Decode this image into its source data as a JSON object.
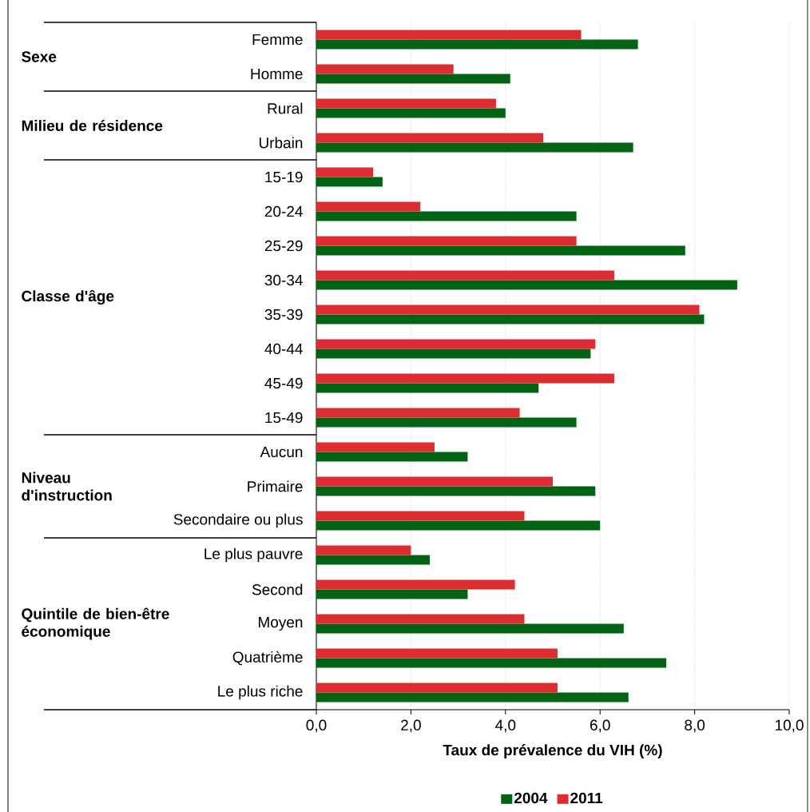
{
  "chart_data": {
    "type": "bar",
    "orientation": "horizontal",
    "xlabel": "Taux de prévalence du VIH (%)",
    "categories": [
      "Femme",
      "Homme",
      "Rural",
      "Urbain",
      "15-19",
      "20-24",
      "25-29",
      "30-34",
      "35-39",
      "40-44",
      "45-49",
      "15-49",
      "Aucun",
      "Primaire",
      "Secondaire ou plus",
      "Le plus pauvre",
      "Second",
      "Moyen",
      "Quatrième",
      "Le plus riche"
    ],
    "series": [
      {
        "name": "2004",
        "color": "#036314",
        "values": [
          6.8,
          4.1,
          4.0,
          6.7,
          1.4,
          5.5,
          7.8,
          8.9,
          8.2,
          5.8,
          4.7,
          5.5,
          3.2,
          5.9,
          6.0,
          2.4,
          3.2,
          6.5,
          7.4,
          6.6
        ]
      },
      {
        "name": "2011",
        "color": "#dc2d32",
        "values": [
          5.6,
          2.9,
          3.8,
          4.8,
          1.2,
          2.2,
          5.5,
          6.3,
          8.1,
          5.9,
          6.3,
          4.3,
          2.5,
          5.0,
          4.4,
          2.0,
          4.2,
          4.4,
          5.1,
          5.1
        ]
      }
    ],
    "xlim": [
      0,
      10
    ],
    "xticks": [
      {
        "value": 0,
        "label": "0,0"
      },
      {
        "value": 2,
        "label": "2,0"
      },
      {
        "value": 4,
        "label": "4,0"
      },
      {
        "value": 6,
        "label": "6,0"
      },
      {
        "value": 8,
        "label": "8,0"
      },
      {
        "value": 10,
        "label": "10,0"
      }
    ],
    "grid": "x",
    "legend": "bottom",
    "annotations": [
      "Sexe",
      "Milieu de résidence",
      "Classe d'âge",
      "Niveau d'instruction",
      "Quintile de bien-être économique"
    ]
  }
}
